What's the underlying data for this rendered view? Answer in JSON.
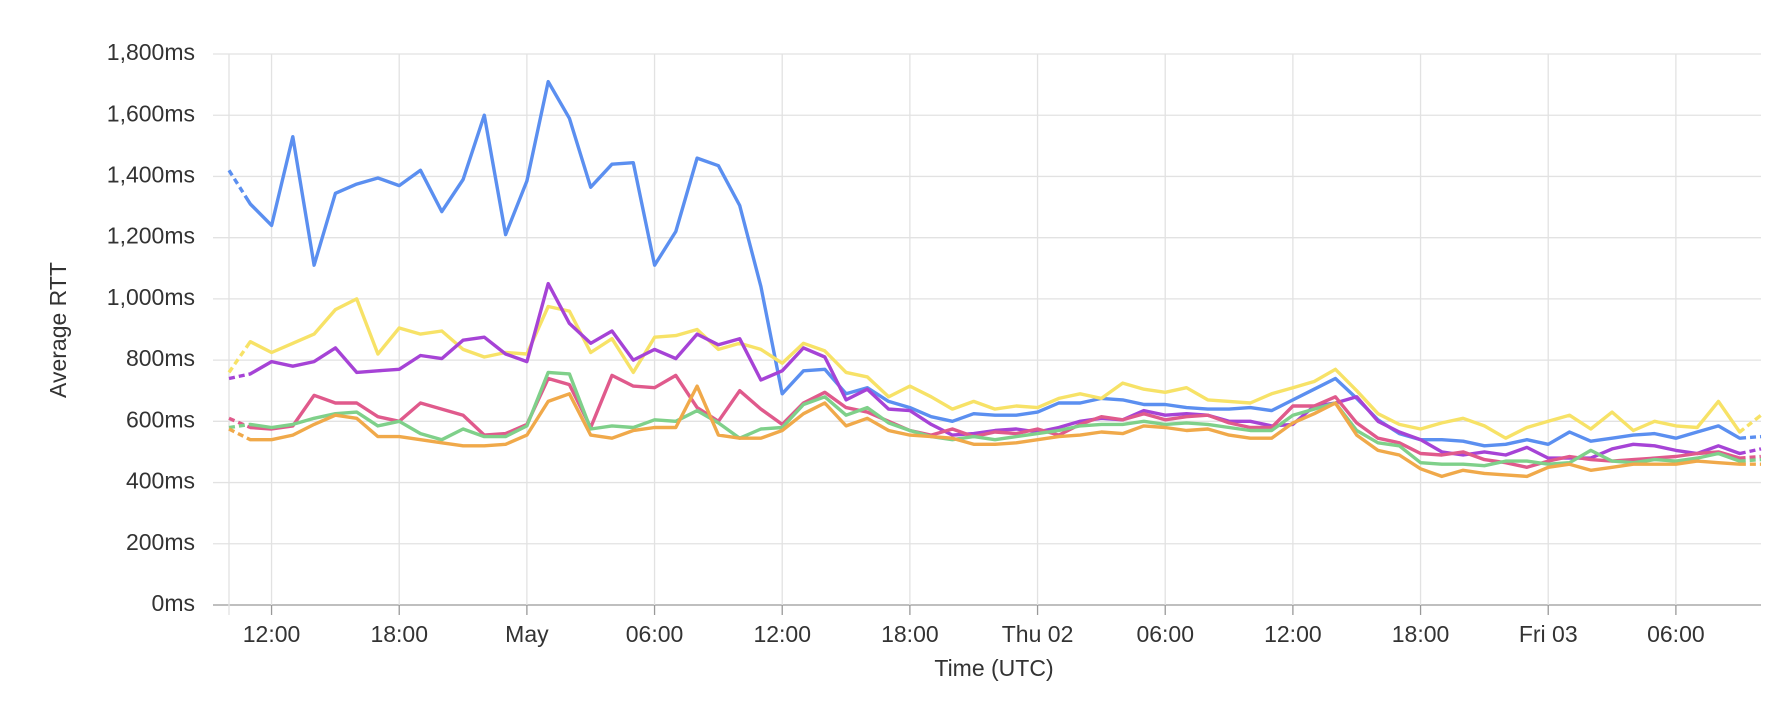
{
  "chart_data": {
    "type": "line",
    "ylabel": "Average RTT",
    "xlabel": "Time (UTC)",
    "categories": [
      null,
      null,
      "12:00",
      null,
      null,
      null,
      null,
      null,
      "18:00",
      null,
      null,
      null,
      null,
      null,
      "May",
      null,
      null,
      null,
      null,
      null,
      "06:00",
      null,
      null,
      null,
      null,
      null,
      "12:00",
      null,
      null,
      null,
      null,
      null,
      "18:00",
      null,
      null,
      null,
      null,
      null,
      "Thu 02",
      null,
      null,
      null,
      null,
      null,
      "06:00",
      null,
      null,
      null,
      null,
      null,
      "12:00",
      null,
      null,
      null,
      null,
      null,
      "18:00",
      null,
      null,
      null,
      null,
      null,
      "Fri 03",
      null,
      null,
      null,
      null,
      null,
      "06:00",
      null,
      null,
      null,
      null
    ],
    "ylim": [
      0,
      1800
    ],
    "yticks": [
      {
        "value": 0,
        "label": "0ms"
      },
      {
        "value": 200,
        "label": "200ms"
      },
      {
        "value": 400,
        "label": "400ms"
      },
      {
        "value": 600,
        "label": "600ms"
      },
      {
        "value": 800,
        "label": "800ms"
      },
      {
        "value": 1000,
        "label": "1,000ms"
      },
      {
        "value": 1200,
        "label": "1,200ms"
      },
      {
        "value": 1400,
        "label": "1,400ms"
      },
      {
        "value": 1600,
        "label": "1,600ms"
      },
      {
        "value": 1800,
        "label": "1,800ms"
      }
    ],
    "grid": true,
    "series": [
      {
        "color": "#5b8ff0",
        "values": [
          1420,
          1310,
          1240,
          1530,
          1110,
          1345,
          1375,
          1395,
          1370,
          1420,
          1285,
          1390,
          1600,
          1210,
          1385,
          1710,
          1590,
          1365,
          1440,
          1445,
          1110,
          1220,
          1460,
          1435,
          1305,
          1040,
          690,
          765,
          770,
          690,
          710,
          665,
          645,
          615,
          600,
          625,
          620,
          620,
          630,
          660,
          660,
          675,
          670,
          655,
          655,
          645,
          640,
          640,
          645,
          635,
          670,
          705,
          740,
          675,
          605,
          560,
          540,
          540,
          535,
          520,
          525,
          540,
          525,
          565,
          535,
          545,
          555,
          560,
          545,
          565,
          585,
          545,
          550
        ]
      },
      {
        "color": "#f7e267",
        "values": [
          760,
          860,
          825,
          855,
          885,
          965,
          1000,
          820,
          905,
          885,
          895,
          835,
          810,
          825,
          820,
          975,
          960,
          825,
          870,
          760,
          875,
          880,
          900,
          835,
          855,
          835,
          790,
          855,
          830,
          760,
          745,
          680,
          715,
          680,
          640,
          665,
          640,
          650,
          645,
          675,
          690,
          675,
          725,
          705,
          695,
          710,
          670,
          665,
          660,
          690,
          710,
          730,
          770,
          700,
          625,
          590,
          575,
          595,
          610,
          585,
          545,
          580,
          600,
          620,
          575,
          630,
          570,
          600,
          585,
          580,
          665,
          565,
          620
        ]
      },
      {
        "color": "#a643d6",
        "values": [
          740,
          755,
          795,
          780,
          795,
          840,
          760,
          765,
          770,
          815,
          805,
          865,
          875,
          820,
          795,
          1050,
          920,
          855,
          895,
          800,
          835,
          805,
          885,
          850,
          870,
          735,
          765,
          840,
          810,
          670,
          705,
          640,
          635,
          590,
          555,
          560,
          570,
          575,
          565,
          580,
          600,
          610,
          605,
          635,
          620,
          625,
          620,
          600,
          600,
          585,
          590,
          650,
          660,
          680,
          600,
          565,
          540,
          500,
          490,
          500,
          490,
          515,
          480,
          480,
          480,
          510,
          525,
          520,
          505,
          495,
          520,
          495,
          510
        ]
      },
      {
        "color": "#e05a8c",
        "values": [
          610,
          580,
          575,
          585,
          685,
          660,
          660,
          615,
          600,
          660,
          640,
          620,
          555,
          560,
          590,
          740,
          720,
          580,
          750,
          715,
          710,
          750,
          645,
          600,
          700,
          640,
          590,
          660,
          695,
          645,
          630,
          600,
          570,
          555,
          575,
          550,
          565,
          560,
          575,
          555,
          590,
          615,
          605,
          625,
          605,
          615,
          620,
          595,
          580,
          580,
          650,
          650,
          680,
          595,
          545,
          530,
          495,
          490,
          500,
          475,
          465,
          450,
          470,
          485,
          475,
          470,
          475,
          480,
          485,
          495,
          500,
          480,
          485
        ]
      },
      {
        "color": "#7fd08a",
        "values": [
          580,
          590,
          580,
          590,
          610,
          625,
          630,
          585,
          600,
          560,
          540,
          575,
          550,
          550,
          585,
          760,
          755,
          575,
          585,
          580,
          605,
          600,
          635,
          595,
          545,
          575,
          580,
          655,
          680,
          620,
          645,
          595,
          570,
          550,
          540,
          550,
          540,
          550,
          560,
          570,
          585,
          590,
          590,
          600,
          590,
          595,
          590,
          580,
          570,
          570,
          620,
          640,
          660,
          570,
          530,
          520,
          465,
          460,
          460,
          455,
          470,
          470,
          460,
          465,
          505,
          470,
          465,
          475,
          470,
          480,
          495,
          470,
          475
        ]
      },
      {
        "color": "#f0a94a",
        "values": [
          575,
          540,
          540,
          555,
          590,
          620,
          610,
          550,
          550,
          540,
          530,
          520,
          520,
          525,
          555,
          665,
          690,
          555,
          545,
          570,
          580,
          580,
          715,
          555,
          545,
          545,
          570,
          625,
          660,
          585,
          610,
          570,
          555,
          550,
          545,
          525,
          525,
          530,
          540,
          550,
          555,
          565,
          560,
          585,
          580,
          570,
          575,
          555,
          545,
          545,
          595,
          625,
          660,
          555,
          505,
          490,
          445,
          420,
          440,
          430,
          425,
          420,
          450,
          460,
          440,
          450,
          460,
          460,
          460,
          470,
          465,
          460,
          460
        ]
      }
    ]
  }
}
